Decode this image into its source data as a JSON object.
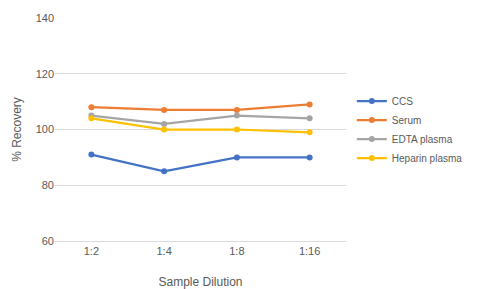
{
  "chart_data": {
    "type": "line",
    "x_label": "Sample Dilution",
    "y_label": "% Recovery",
    "categories": [
      "1:2",
      "1:4",
      "1:8",
      "1:16"
    ],
    "series": [
      {
        "name": "CCS",
        "color": "#4472c4",
        "values": [
          91,
          85,
          90,
          90
        ]
      },
      {
        "name": "Serum",
        "color": "#ed7d31",
        "values": [
          108,
          107,
          107,
          109
        ]
      },
      {
        "name": "EDTA plasma",
        "color": "#a5a5a5",
        "values": [
          105,
          102,
          105,
          104
        ]
      },
      {
        "name": "Heparin plasma",
        "color": "#ffc000",
        "values": [
          104,
          100,
          100,
          99
        ]
      }
    ],
    "ylim": [
      60,
      140
    ],
    "yticks": [
      60,
      80,
      100,
      120,
      140
    ],
    "grid": true,
    "legend": "right",
    "marker": "circle"
  }
}
